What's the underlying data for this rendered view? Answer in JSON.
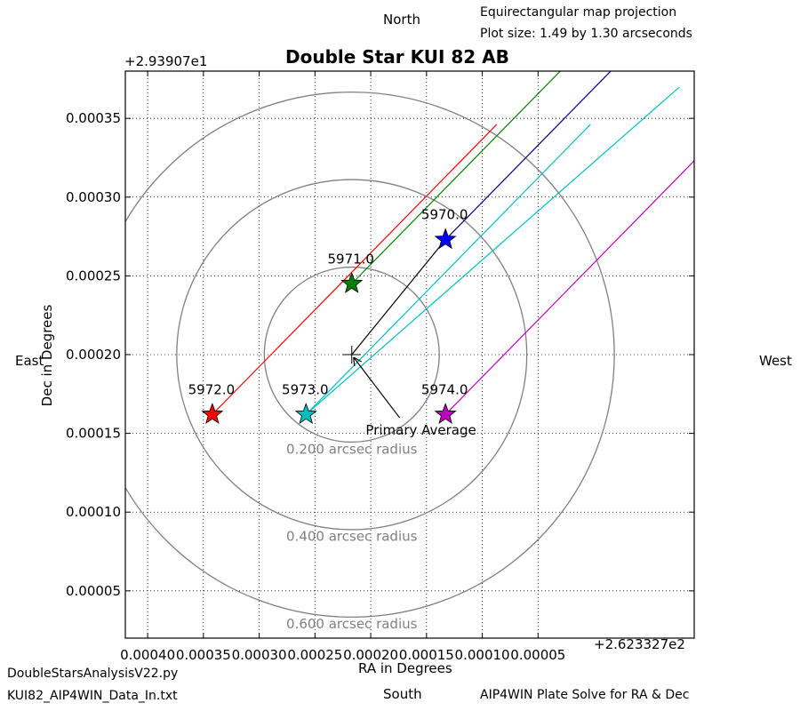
{
  "page": {
    "north": "North",
    "south": "South",
    "east": "East",
    "west": "West",
    "projection": "Equirectangular map projection",
    "plot_size": "Plot size: 1.49 by 1.30 arcseconds",
    "script_name": "DoubleStarsAnalysisV22.py",
    "data_file": "KUI82_AIP4WIN_Data_In.txt",
    "solver": "AIP4WIN Plate Solve for RA & Dec"
  },
  "chart_data": {
    "type": "scatter",
    "title": "Double Star KUI 82 AB",
    "xlabel": "RA in Degrees",
    "ylabel": "Dec in Degrees",
    "x_offset_label": "+2.623327e2",
    "y_offset_label": "+2.93907e1",
    "xlim": [
      0.00042,
      -9e-05
    ],
    "ylim": [
      2e-05,
      0.00038
    ],
    "x_reversed": true,
    "grid": true,
    "grid_style": "dotted",
    "xticks": [
      0.0004,
      0.00035,
      0.0003,
      0.00025,
      0.0002,
      0.00015,
      0.0001,
      5e-05
    ],
    "xtick_labels": [
      "0.00040",
      "0.00035",
      "0.00030",
      "0.00025",
      "0.00020",
      "0.00015",
      "0.00010",
      "0.00005"
    ],
    "yticks": [
      5e-05,
      0.0001,
      0.00015,
      0.0002,
      0.00025,
      0.0003,
      0.00035
    ],
    "ytick_labels": [
      "0.00005",
      "0.00010",
      "0.00015",
      "0.00020",
      "0.00025",
      "0.00030",
      "0.00035"
    ],
    "primary_average": {
      "x": 0.000217,
      "y": 0.0002,
      "label": "Primary Average",
      "label_x": 0.000198,
      "label_y": 0.000152
    },
    "points": [
      {
        "label": "5970.0",
        "x": 0.000133,
        "y": 0.000273,
        "color": "#0000ff",
        "line_color": "#000080"
      },
      {
        "label": "5971.0",
        "x": 0.000217,
        "y": 0.000245,
        "color": "#008000",
        "line_color": "#008000"
      },
      {
        "label": "5972.0",
        "x": 0.000342,
        "y": 0.000162,
        "color": "#ff0000",
        "line_color": "#ff0000"
      },
      {
        "label": "5973.0",
        "x": 0.000258,
        "y": 0.000162,
        "color": "#00bfbf",
        "line_color": "#00bfbf"
      },
      {
        "label": "5974.0",
        "x": 0.000133,
        "y": 0.000162,
        "color": "#bf00bf",
        "line_color": "#bf00bf"
      }
    ],
    "circles": [
      {
        "radius_arcsec": 0.2,
        "label": "0.200 arcsec radius",
        "label_y": 0.000137
      },
      {
        "radius_arcsec": 0.4,
        "label": "0.400 arcsec radius",
        "label_y": 8.17e-05
      },
      {
        "radius_arcsec": 0.6,
        "label": "0.600 arcsec radius",
        "label_y": 2.61e-05
      }
    ],
    "circle_color": "#808080"
  }
}
